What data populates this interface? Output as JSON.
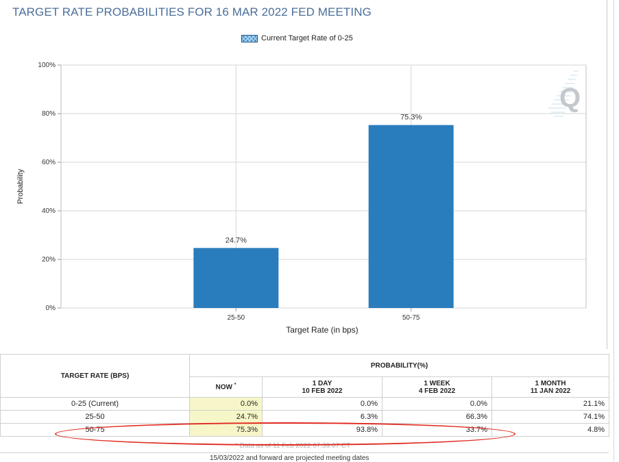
{
  "page": {
    "title": "TARGET RATE PROBABILITIES FOR 16 MAR 2022 FED MEETING",
    "legend": "Current Target Rate of 0-25",
    "logo_text": "Q"
  },
  "chart_data": {
    "type": "bar",
    "title": "",
    "xlabel": "Target Rate (in bps)",
    "ylabel": "Probability",
    "categories": [
      "25-50",
      "50-75"
    ],
    "values": [
      24.7,
      75.3
    ],
    "value_labels": [
      "24.7%",
      "75.3%"
    ],
    "ylim": [
      0,
      100
    ],
    "yticks": [
      "0%",
      "20%",
      "40%",
      "60%",
      "80%",
      "100%"
    ],
    "grid": true,
    "bar_color": "#2a7dbd"
  },
  "table": {
    "col_target": "TARGET RATE (BPS)",
    "col_prob": "PROBABILITY(%)",
    "sub_headers": [
      {
        "l1": "NOW",
        "l2": ""
      },
      {
        "l1": "1 DAY",
        "l2": "10 FEB 2022"
      },
      {
        "l1": "1 WEEK",
        "l2": "4 FEB 2022"
      },
      {
        "l1": "1 MONTH",
        "l2": "11 JAN 2022"
      }
    ],
    "now_mark": "*",
    "rows": [
      {
        "rate": "0-25 (Current)",
        "now": "0.0%",
        "day": "0.0%",
        "week": "0.0%",
        "month": "21.1%"
      },
      {
        "rate": "25-50",
        "now": "24.7%",
        "day": "6.3%",
        "week": "66.3%",
        "month": "74.1%"
      },
      {
        "rate": "50-75",
        "now": "75.3%",
        "day": "93.8%",
        "week": "33.7%",
        "month": "4.8%"
      }
    ],
    "footnote": "* Data as of 11 Feb 2022 07:39:07 CT",
    "bottom_text": "15/03/2022 and forward are projected meeting dates"
  },
  "colors": {
    "highlight_oval": "#e0281e",
    "now_cell": "#f7f6c8",
    "title": "#4a6e9a"
  }
}
